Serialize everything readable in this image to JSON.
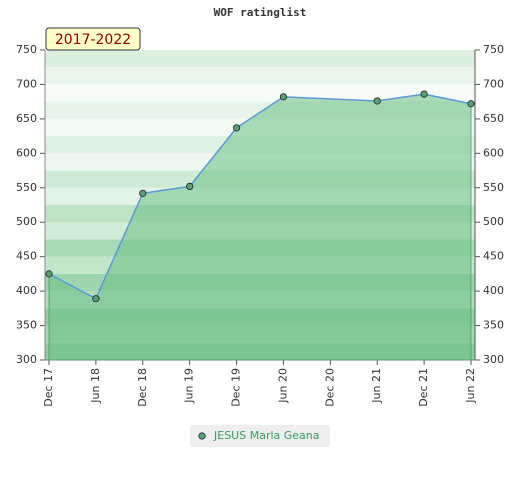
{
  "chart_data": {
    "type": "area",
    "title": "WOF ratinglist",
    "annotation": "2017-2022",
    "series": [
      {
        "name": "JESUS Marla Geana",
        "color": "#5b9bd5",
        "marker_color": "#5aa06a",
        "fill_color": "#6cbf85",
        "x": [
          0,
          6,
          12,
          18,
          24,
          30,
          42,
          48,
          54
        ],
        "values": [
          425,
          389,
          542,
          552,
          637,
          682,
          676,
          686,
          672
        ]
      }
    ],
    "xlim": [
      0,
      54
    ],
    "xticks": [
      {
        "value": 0,
        "label": "Dec 17"
      },
      {
        "value": 6,
        "label": "Jun 18"
      },
      {
        "value": 12,
        "label": "Dec 18"
      },
      {
        "value": 18,
        "label": "Jun 19"
      },
      {
        "value": 24,
        "label": "Dec 19"
      },
      {
        "value": 30,
        "label": "Jun 20"
      },
      {
        "value": 36,
        "label": "Dec 20"
      },
      {
        "value": 42,
        "label": "Jun 21"
      },
      {
        "value": 48,
        "label": "Dec 21"
      },
      {
        "value": 54,
        "label": "Jun 22"
      }
    ],
    "ylim": [
      300,
      750
    ],
    "yticks": [
      300,
      350,
      400,
      450,
      500,
      550,
      600,
      650,
      700,
      750
    ],
    "y2lim": [
      300,
      750
    ],
    "y2ticks": [
      300,
      350,
      400,
      450,
      500,
      550,
      600,
      650,
      700,
      750
    ]
  }
}
